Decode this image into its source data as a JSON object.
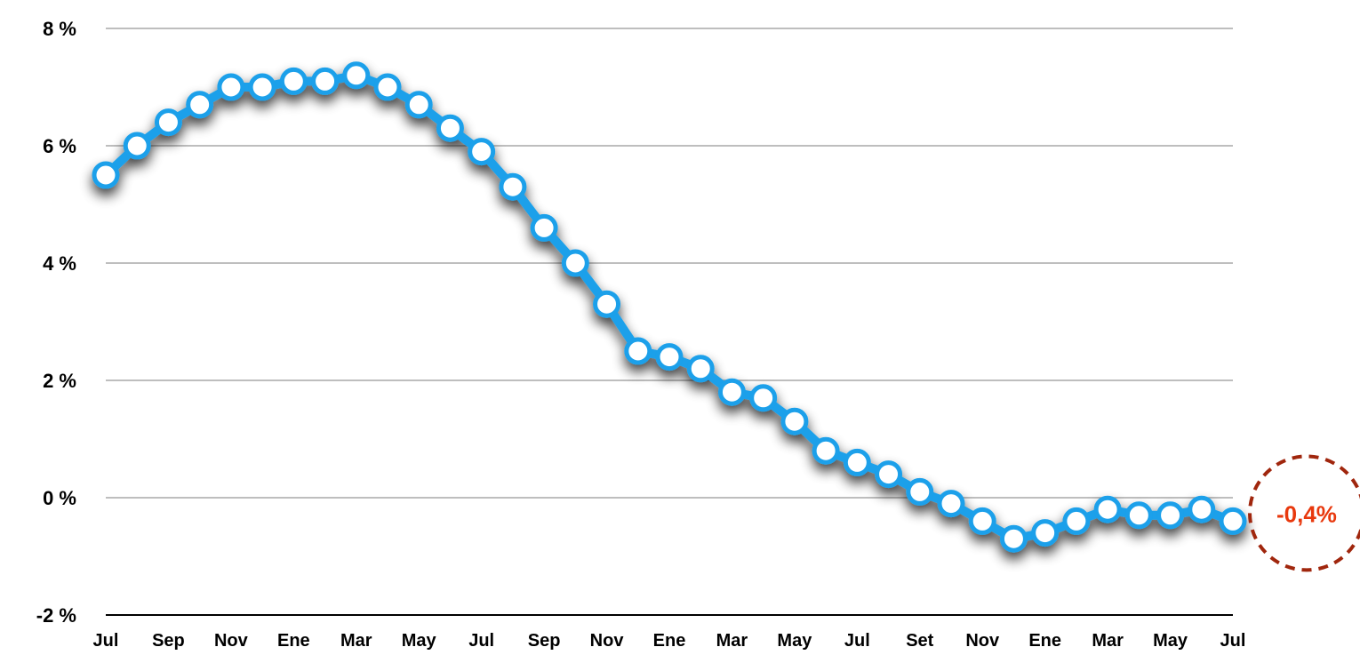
{
  "chart_data": {
    "type": "line",
    "title": "",
    "xlabel": "",
    "ylabel": "",
    "ylim": [
      -2,
      8
    ],
    "y_ticks": [
      8,
      6,
      4,
      2,
      0,
      -2
    ],
    "y_tick_labels": [
      "8 %",
      "6 %",
      "4 %",
      "2 %",
      "0 %",
      "-2 %"
    ],
    "x_tick_labels": [
      "Jul",
      "Sep",
      "Nov",
      "Ene",
      "Mar",
      "May",
      "Jul",
      "Sep",
      "Nov",
      "Ene",
      "Mar",
      "May",
      "Jul",
      "Set",
      "Nov",
      "Ene",
      "Mar",
      "May",
      "Jul"
    ],
    "grid": true,
    "legend": "none",
    "series": [
      {
        "color": "#1aa0ea",
        "marker_fill": "#ffffff",
        "values": [
          5.5,
          6.0,
          6.4,
          6.7,
          7.0,
          7.0,
          7.1,
          7.1,
          7.2,
          7.0,
          6.7,
          6.3,
          5.9,
          5.3,
          4.6,
          4.0,
          3.3,
          2.5,
          2.4,
          2.2,
          1.8,
          1.7,
          1.3,
          0.8,
          0.6,
          0.4,
          0.1,
          -0.1,
          -0.4,
          -0.7,
          -0.6,
          -0.4,
          -0.2,
          -0.3,
          -0.3,
          -0.2,
          -0.4
        ]
      }
    ],
    "annotations": [
      {
        "text": "-0,4%",
        "color": "#e8380d",
        "border_color": "#a0260d",
        "style": "dashed-circle"
      }
    ]
  }
}
